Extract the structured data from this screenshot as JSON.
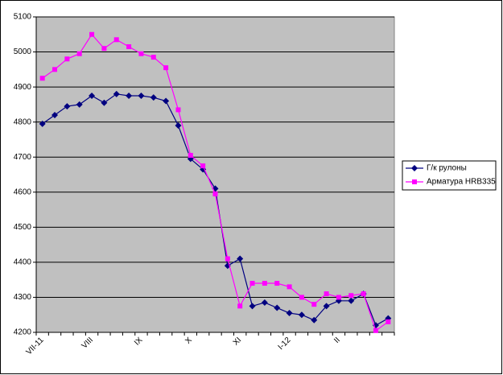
{
  "chart_data": {
    "type": "line",
    "categories": [
      "VII-11",
      null,
      null,
      null,
      "VIII",
      null,
      null,
      null,
      "IX",
      null,
      null,
      null,
      "X",
      null,
      null,
      null,
      "XI",
      null,
      null,
      null,
      "I-12",
      null,
      null,
      null,
      "II",
      null,
      null,
      null,
      null
    ],
    "series": [
      {
        "name": "Г/к рулоны",
        "color": "#000080",
        "marker": "diamond",
        "values": [
          4795,
          4820,
          4845,
          4850,
          4875,
          4855,
          4880,
          4875,
          4875,
          4870,
          4860,
          4790,
          4695,
          4665,
          4610,
          4390,
          4410,
          4275,
          4285,
          4270,
          4255,
          4250,
          4235,
          4275,
          4290,
          4290,
          4310,
          4220,
          4240
        ]
      },
      {
        "name": "Арматура HRB335",
        "color": "#ff00ff",
        "marker": "square",
        "values": [
          4925,
          4950,
          4980,
          4995,
          5050,
          5010,
          5035,
          5015,
          4995,
          4985,
          4955,
          4835,
          4705,
          4675,
          4595,
          4410,
          4275,
          4340,
          4340,
          4340,
          4330,
          4300,
          4280,
          4310,
          4300,
          4305,
          4310,
          4205,
          4230
        ]
      }
    ],
    "ylim": [
      4200,
      5100
    ],
    "yticks": [
      4200,
      4300,
      4400,
      4500,
      4600,
      4700,
      4800,
      4900,
      5000,
      5100
    ],
    "grid": true,
    "legend": "right"
  }
}
